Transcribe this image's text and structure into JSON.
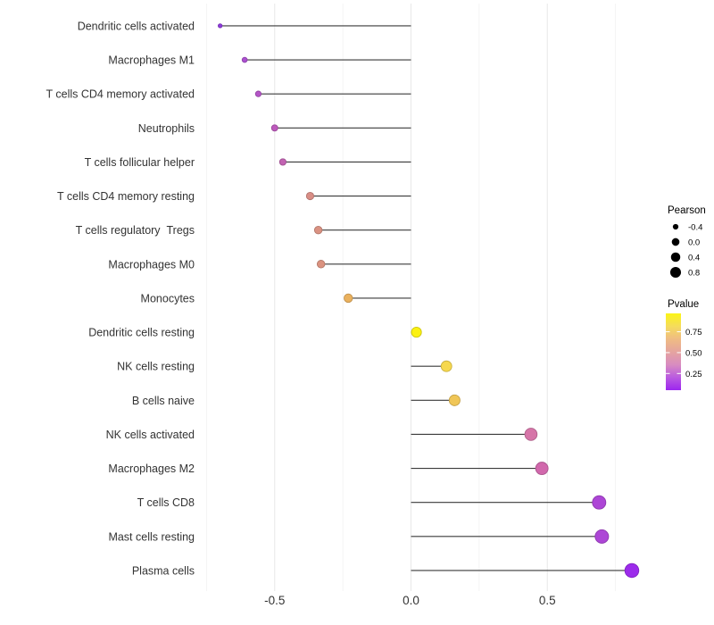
{
  "chart_data": {
    "type": "lollipop",
    "orientation": "horizontal",
    "title": "",
    "xlabel": "",
    "ylabel": "",
    "grid": "on",
    "baseline_x": 0.0,
    "xlim": [
      -0.78,
      0.89
    ],
    "x_ticks": {
      "labels": [
        "-0.5",
        "0.0",
        "0.5"
      ],
      "values": [
        -0.5,
        0.0,
        0.5
      ]
    },
    "x_minor_gridlines": [
      -0.75,
      -0.25,
      0.25,
      0.75
    ],
    "categories": [
      "Dendritic cells activated",
      "Macrophages M1",
      "T cells CD4 memory activated",
      "Neutrophils",
      "T cells follicular helper",
      "T cells CD4 memory resting",
      "T cells regulatory  Tregs",
      "Macrophages M0",
      "Monocytes",
      "Dendritic cells resting",
      "NK cells resting",
      "B cells naive",
      "NK cells activated",
      "Macrophages M2",
      "T cells CD8",
      "Mast cells resting",
      "Plasma cells"
    ],
    "points": [
      {
        "label": "Dendritic cells activated",
        "pearson": -0.7,
        "pvalue": 0.08,
        "color": "#8E3BDB"
      },
      {
        "label": "Macrophages M1",
        "pearson": -0.61,
        "pvalue": 0.16,
        "color": "#AC50D0"
      },
      {
        "label": "T cells CD4 memory activated",
        "pearson": -0.56,
        "pvalue": 0.19,
        "color": "#B455C7"
      },
      {
        "label": "Neutrophils",
        "pearson": -0.5,
        "pvalue": 0.23,
        "color": "#BD59BC"
      },
      {
        "label": "T cells follicular helper",
        "pearson": -0.47,
        "pvalue": 0.27,
        "color": "#C263B2"
      },
      {
        "label": "T cells CD4 memory resting",
        "pearson": -0.37,
        "pvalue": 0.5,
        "color": "#D98E86"
      },
      {
        "label": "T cells regulatory  Tregs",
        "pearson": -0.34,
        "pvalue": 0.52,
        "color": "#DA9282"
      },
      {
        "label": "Macrophages M0",
        "pearson": -0.33,
        "pvalue": 0.53,
        "color": "#DB9380"
      },
      {
        "label": "Monocytes",
        "pearson": -0.23,
        "pvalue": 0.68,
        "color": "#EAB15E"
      },
      {
        "label": "Dendritic cells resting",
        "pearson": 0.02,
        "pvalue": 0.95,
        "color": "#FBF112"
      },
      {
        "label": "NK cells resting",
        "pearson": 0.13,
        "pvalue": 0.84,
        "color": "#F6D84E"
      },
      {
        "label": "B cells naive",
        "pearson": 0.16,
        "pvalue": 0.8,
        "color": "#F0C657"
      },
      {
        "label": "NK cells activated",
        "pearson": 0.44,
        "pvalue": 0.42,
        "color": "#D675A8"
      },
      {
        "label": "Macrophages M2",
        "pearson": 0.48,
        "pvalue": 0.37,
        "color": "#D168AC"
      },
      {
        "label": "T cells CD8",
        "pearson": 0.69,
        "pvalue": 0.15,
        "color": "#AD46D6"
      },
      {
        "label": "Mast cells resting",
        "pearson": 0.7,
        "pvalue": 0.15,
        "color": "#AD46D6"
      },
      {
        "label": "Plasma cells",
        "pearson": 0.81,
        "pvalue": 0.08,
        "color": "#9C2BEB"
      }
    ],
    "legend": {
      "size": {
        "title": "Pearson",
        "entries": [
          {
            "label": "-0.4",
            "value": -0.4
          },
          {
            "label": "0.0",
            "value": 0.0
          },
          {
            "label": "0.4",
            "value": 0.4
          },
          {
            "label": "0.8",
            "value": 0.8
          }
        ]
      },
      "color": {
        "title": "Pvalue",
        "entries": [
          {
            "label": "0.75",
            "value": 0.75
          },
          {
            "label": "0.50",
            "value": 0.5
          },
          {
            "label": "0.25",
            "value": 0.25
          }
        ],
        "bar_range": [
          0.05,
          0.97
        ],
        "gradient_top_to_bottom": [
          "#FBF516",
          "#F5DC5C",
          "#EFBC83",
          "#E5A49F",
          "#D88CC0",
          "#BA5BE0",
          "#9C26EF"
        ]
      }
    },
    "style_colors": {
      "background": "#FFFFFF",
      "segment": "#3A3A3A",
      "grid_major": "#E8E8E8",
      "grid_minor": "#F3F3F3",
      "axis_text": "#333333",
      "legend_text": "#000000",
      "legend_dot": "#000000",
      "colorbar_tick": "#FFFFFF"
    }
  }
}
